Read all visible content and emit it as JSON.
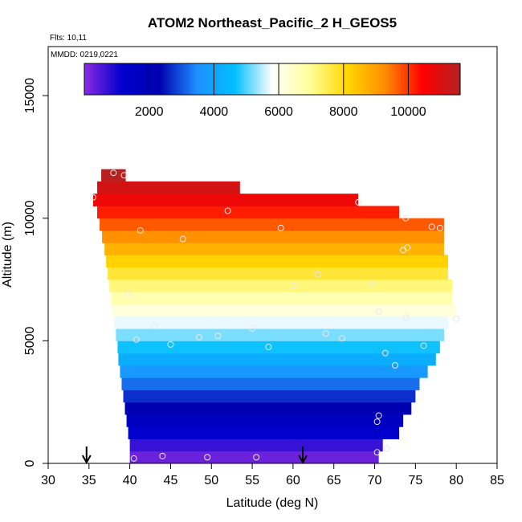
{
  "chart_data": {
    "type": "heatmap",
    "title": "ATOM2 Northeast_Pacific_2 H_GEOS5",
    "annotations": [
      "Flts: 10,11",
      "MMDD: 0219,0221"
    ],
    "xlabel": "Latitude (deg N)",
    "ylabel": "Altitude (m)",
    "xlim": [
      30,
      85
    ],
    "ylim": [
      0,
      17000
    ],
    "x_ticks": [
      30,
      35,
      40,
      45,
      50,
      55,
      60,
      65,
      70,
      75,
      80,
      85
    ],
    "y_ticks": [
      0,
      5000,
      10000,
      15000
    ],
    "colorbar": {
      "range": [
        0,
        11600
      ],
      "ticks": [
        2000,
        4000,
        6000,
        8000,
        10000
      ],
      "colors": [
        "#8a2be2",
        "#0000cd",
        "#0000b0",
        "#1e90ff",
        "#00bfff",
        "#ffffff",
        "#ffff99",
        "#ffd700",
        "#ff8c00",
        "#ff0000",
        "#b22222"
      ]
    },
    "layer_height": 500,
    "layers": [
      {
        "alt": 0,
        "lat": [
          40.0,
          70.5
        ],
        "value": 250
      },
      {
        "alt": 500,
        "lat": [
          40.0,
          71.0
        ],
        "value": 700
      },
      {
        "alt": 1000,
        "lat": [
          39.8,
          73.0
        ],
        "value": 1200
      },
      {
        "alt": 1500,
        "lat": [
          39.6,
          73.5
        ],
        "value": 1700
      },
      {
        "alt": 2000,
        "lat": [
          39.4,
          74.5
        ],
        "value": 2200
      },
      {
        "alt": 2500,
        "lat": [
          39.2,
          75.0
        ],
        "value": 2700
      },
      {
        "alt": 3000,
        "lat": [
          39.0,
          75.5
        ],
        "value": 3200
      },
      {
        "alt": 3500,
        "lat": [
          38.8,
          76.5
        ],
        "value": 3700
      },
      {
        "alt": 4000,
        "lat": [
          38.6,
          77.5
        ],
        "value": 4200
      },
      {
        "alt": 4500,
        "lat": [
          38.5,
          78.0
        ],
        "value": 4700
      },
      {
        "alt": 5000,
        "lat": [
          38.3,
          78.5
        ],
        "value": 5200
      },
      {
        "alt": 5500,
        "lat": [
          38.1,
          79.0
        ],
        "value": 5700
      },
      {
        "alt": 6000,
        "lat": [
          37.9,
          80.0
        ],
        "value": 6200
      },
      {
        "alt": 6500,
        "lat": [
          37.7,
          79.5
        ],
        "value": 6700
      },
      {
        "alt": 7000,
        "lat": [
          37.5,
          79.5
        ],
        "value": 7200
      },
      {
        "alt": 7500,
        "lat": [
          37.3,
          79.0
        ],
        "value": 7700
      },
      {
        "alt": 8000,
        "lat": [
          37.1,
          79.0
        ],
        "value": 8200
      },
      {
        "alt": 8500,
        "lat": [
          36.9,
          78.5
        ],
        "value": 8700
      },
      {
        "alt": 9000,
        "lat": [
          36.6,
          78.5
        ],
        "value": 9200
      },
      {
        "alt": 9500,
        "lat": [
          36.3,
          78.5
        ],
        "value": 9700
      },
      {
        "alt": 10000,
        "lat": [
          36.0,
          73.0
        ],
        "value": 10200
      },
      {
        "alt": 10500,
        "lat": [
          35.5,
          68.0
        ],
        "value": 10700
      },
      {
        "alt": 11000,
        "lat": [
          36.0,
          53.5
        ],
        "value": 11100
      },
      {
        "alt": 11500,
        "lat": [
          36.5,
          39.5
        ],
        "value": 11500
      }
    ],
    "flight_points": [
      {
        "lat": 40.5,
        "alt": 200
      },
      {
        "lat": 44.0,
        "alt": 300
      },
      {
        "lat": 49.5,
        "alt": 250
      },
      {
        "lat": 55.5,
        "alt": 250
      },
      {
        "lat": 70.3,
        "alt": 450
      },
      {
        "lat": 71.5,
        "alt": 600
      },
      {
        "lat": 70.3,
        "alt": 1700
      },
      {
        "lat": 70.5,
        "alt": 1950
      },
      {
        "lat": 72.5,
        "alt": 4000
      },
      {
        "lat": 71.3,
        "alt": 4500
      },
      {
        "lat": 76.0,
        "alt": 4800
      },
      {
        "lat": 66.0,
        "alt": 5100
      },
      {
        "lat": 64.0,
        "alt": 5300
      },
      {
        "lat": 57.0,
        "alt": 4750
      },
      {
        "lat": 45.0,
        "alt": 4850
      },
      {
        "lat": 40.8,
        "alt": 5050
      },
      {
        "lat": 48.5,
        "alt": 5150
      },
      {
        "lat": 50.8,
        "alt": 5200
      },
      {
        "lat": 55.0,
        "alt": 5500
      },
      {
        "lat": 43.0,
        "alt": 5600
      },
      {
        "lat": 73.8,
        "alt": 5950
      },
      {
        "lat": 70.5,
        "alt": 6200
      },
      {
        "lat": 80.0,
        "alt": 5900
      },
      {
        "lat": 39.8,
        "alt": 6950
      },
      {
        "lat": 60.0,
        "alt": 7250
      },
      {
        "lat": 63.0,
        "alt": 7700
      },
      {
        "lat": 69.7,
        "alt": 7300
      },
      {
        "lat": 46.5,
        "alt": 9150
      },
      {
        "lat": 41.3,
        "alt": 9500
      },
      {
        "lat": 58.5,
        "alt": 9600
      },
      {
        "lat": 73.5,
        "alt": 8700
      },
      {
        "lat": 74.0,
        "alt": 8800
      },
      {
        "lat": 77.0,
        "alt": 9650
      },
      {
        "lat": 78.0,
        "alt": 9600
      },
      {
        "lat": 73.8,
        "alt": 10000
      },
      {
        "lat": 52.0,
        "alt": 10300
      },
      {
        "lat": 68.0,
        "alt": 10650
      },
      {
        "lat": 38.0,
        "alt": 11850
      },
      {
        "lat": 39.3,
        "alt": 11750
      },
      {
        "lat": 35.5,
        "alt": 10850
      }
    ],
    "flight_markers_lat": [
      34.7,
      61.2
    ]
  }
}
